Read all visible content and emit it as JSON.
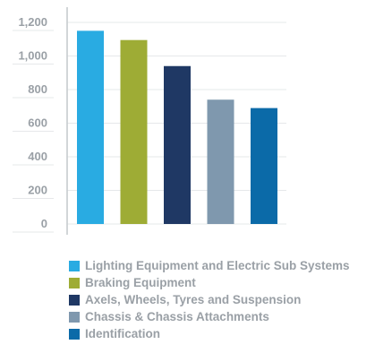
{
  "chart_data": {
    "type": "bar",
    "categories": [
      "Lighting Equipment and Electric Sub Systems",
      "Braking Equipment",
      "Axels, Wheels, Tyres and Suspension",
      "Chassis & Chassis Attachments",
      "Identification"
    ],
    "values": [
      1150,
      1095,
      940,
      740,
      690
    ],
    "colors": [
      "#29abe2",
      "#9eac35",
      "#1f3864",
      "#7f98ae",
      "#0b6aa8"
    ],
    "y_ticks": [
      {
        "value": 0,
        "label": "0"
      },
      {
        "value": 200,
        "label": "200"
      },
      {
        "value": 400,
        "label": "400"
      },
      {
        "value": 600,
        "label": "600"
      },
      {
        "value": 800,
        "label": "800"
      },
      {
        "value": 1000,
        "label": "1,000"
      },
      {
        "value": 1200,
        "label": "1,200"
      }
    ],
    "ylim": [
      0,
      1200
    ],
    "grid": true,
    "legend_position": "bottom",
    "axis_color": "#c4c8cc",
    "grid_color": "#e6e8ea",
    "label_color": "#9aa0a6"
  }
}
